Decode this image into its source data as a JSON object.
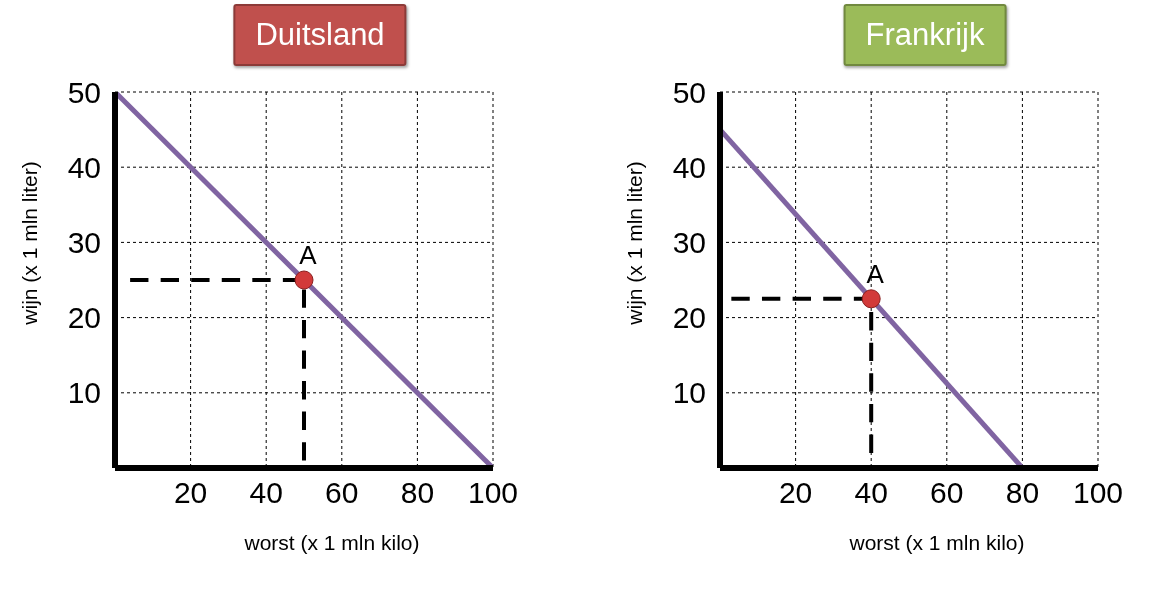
{
  "chart_data": [
    {
      "type": "line",
      "title": "Duitsland",
      "xlabel": "worst (x 1 mln kilo)",
      "ylabel": "wijn (x 1 mln liter)",
      "xlim": [
        0,
        100
      ],
      "ylim": [
        0,
        50
      ],
      "xticks": [
        20,
        40,
        60,
        80,
        100
      ],
      "yticks": [
        10,
        20,
        30,
        40,
        50
      ],
      "grid": true,
      "series": [
        {
          "color": "#8064a2",
          "x": [
            0,
            100
          ],
          "values": [
            50,
            0
          ],
          "marker": "none",
          "line_style": "solid"
        },
        {
          "color": "#000000",
          "x": [
            4,
            50,
            50
          ],
          "values": [
            25,
            25,
            1
          ],
          "marker": "none",
          "line_style": "dashed"
        },
        {
          "type": "scatter",
          "color": "#d23a3a",
          "x": [
            50
          ],
          "values": [
            25
          ],
          "marker": "circle"
        }
      ],
      "annotations": [
        {
          "text": "A",
          "x": 50,
          "y": 25
        }
      ]
    },
    {
      "type": "line",
      "title": "Frankrijk",
      "xlabel": "worst (x 1 mln kilo)",
      "ylabel": "wijn (x 1 mln liter)",
      "xlim": [
        0,
        100
      ],
      "ylim": [
        0,
        50
      ],
      "xticks": [
        20,
        40,
        60,
        80,
        100
      ],
      "yticks": [
        10,
        20,
        30,
        40,
        50
      ],
      "grid": true,
      "series": [
        {
          "color": "#8064a2",
          "x": [
            0,
            80
          ],
          "values": [
            45,
            0
          ],
          "marker": "none",
          "line_style": "solid"
        },
        {
          "color": "#000000",
          "x": [
            3,
            40,
            40
          ],
          "values": [
            22.5,
            22.5,
            2
          ],
          "marker": "none",
          "line_style": "dashed"
        },
        {
          "type": "scatter",
          "color": "#d23a3a",
          "x": [
            40
          ],
          "values": [
            22.5
          ],
          "marker": "circle"
        }
      ],
      "annotations": [
        {
          "text": "A",
          "x": 40,
          "y": 22.5
        }
      ]
    }
  ]
}
